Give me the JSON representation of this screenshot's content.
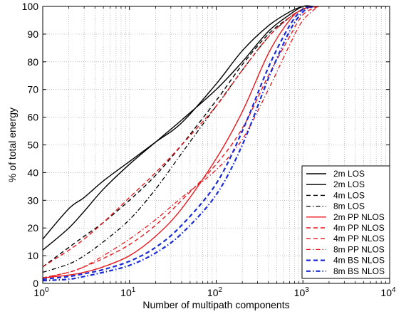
{
  "chart_data": {
    "type": "line",
    "xlabel": "Number of multipath components",
    "ylabel": "% of total energy",
    "xscale": "log",
    "xlim": [
      1,
      10000
    ],
    "ylim": [
      0,
      100
    ],
    "grid": true,
    "legend_position": "bottom-right",
    "x_ticks": [
      {
        "value": 1,
        "base": "10",
        "exp": "0"
      },
      {
        "value": 10,
        "base": "10",
        "exp": "1"
      },
      {
        "value": 100,
        "base": "10",
        "exp": "2"
      },
      {
        "value": 1000,
        "base": "10",
        "exp": "3"
      },
      {
        "value": 10000,
        "base": "10",
        "exp": "4"
      }
    ],
    "y_ticks": [
      {
        "value": 0,
        "label": "0"
      },
      {
        "value": 10,
        "label": "10"
      },
      {
        "value": 20,
        "label": "20"
      },
      {
        "value": 30,
        "label": "30"
      },
      {
        "value": 40,
        "label": "40"
      },
      {
        "value": 50,
        "label": "50"
      },
      {
        "value": 60,
        "label": "60"
      },
      {
        "value": 70,
        "label": "70"
      },
      {
        "value": 80,
        "label": "80"
      },
      {
        "value": 90,
        "label": "90"
      },
      {
        "value": 100,
        "label": "100"
      }
    ],
    "series": [
      {
        "name": "2m LOS",
        "color": "#000000",
        "dash": "solid",
        "width": 1.4,
        "x": [
          1,
          2,
          3,
          5,
          10,
          20,
          40,
          100,
          200,
          400,
          700,
          1000,
          1300
        ],
        "y": [
          16,
          27,
          31,
          37,
          44,
          51,
          58,
          72,
          84,
          93,
          98,
          100,
          100
        ]
      },
      {
        "name": "2m LOS",
        "color": "#000000",
        "dash": "solid",
        "width": 1.4,
        "x": [
          1,
          2,
          3,
          5,
          10,
          20,
          40,
          100,
          200,
          400,
          700,
          1000,
          1300
        ],
        "y": [
          12,
          20,
          26,
          34,
          43,
          51,
          59,
          70,
          80,
          91,
          97,
          100,
          100
        ]
      },
      {
        "name": "4m LOS",
        "color": "#000000",
        "dash": "dash",
        "width": 1.4,
        "x": [
          1,
          2,
          3,
          5,
          10,
          20,
          40,
          100,
          200,
          400,
          700,
          1000,
          1300
        ],
        "y": [
          6,
          13,
          17,
          22,
          30,
          39,
          50,
          66,
          79,
          90,
          96,
          99,
          100
        ]
      },
      {
        "name": "8m LOS",
        "color": "#000000",
        "dash": "dashdot",
        "width": 1.3,
        "x": [
          1,
          2,
          3,
          5,
          10,
          20,
          40,
          100,
          200,
          400,
          700,
          1000,
          1300
        ],
        "y": [
          4,
          7,
          10,
          15,
          23,
          34,
          47,
          64,
          77,
          89,
          96,
          99,
          100
        ]
      },
      {
        "name": "2m PP NLOS",
        "color": "#e8161b",
        "dash": "solid",
        "width": 1.4,
        "x": [
          1,
          2,
          3,
          5,
          10,
          20,
          40,
          100,
          200,
          400,
          700,
          1000,
          1500
        ],
        "y": [
          2,
          3,
          4,
          6,
          10,
          17,
          27,
          45,
          62,
          83,
          95,
          99,
          100
        ]
      },
      {
        "name": "4m PP NLOS",
        "color": "#e8161b",
        "dash": "dash",
        "width": 1.4,
        "x": [
          1,
          2,
          3,
          5,
          10,
          20,
          40,
          100,
          200,
          400,
          700,
          1000,
          1300
        ],
        "y": [
          6,
          12,
          16,
          22,
          31,
          40,
          50,
          64,
          77,
          89,
          96,
          99,
          100
        ]
      },
      {
        "name": "4m PP NLOS",
        "color": "#e8161b",
        "dash": "dash",
        "width": 1.4,
        "x": [
          1,
          2,
          3,
          5,
          10,
          20,
          40,
          100,
          200,
          400,
          700,
          1000,
          1500
        ],
        "y": [
          2,
          4,
          6,
          9,
          14,
          21,
          30,
          43,
          56,
          75,
          89,
          97,
          100
        ]
      },
      {
        "name": "8m PP NLOS",
        "color": "#e8161b",
        "dash": "dashdot",
        "width": 1.3,
        "x": [
          1,
          2,
          3,
          5,
          10,
          20,
          40,
          100,
          200,
          400,
          700,
          1000,
          1500
        ],
        "y": [
          2,
          4,
          6,
          10,
          16,
          23,
          31,
          41,
          52,
          70,
          86,
          95,
          100
        ]
      },
      {
        "name": "4m BS NLOS",
        "color": "#1a2bd6",
        "dash": "dash",
        "width": 2.2,
        "x": [
          1,
          2,
          3,
          5,
          10,
          20,
          40,
          100,
          200,
          400,
          700,
          1000,
          1300
        ],
        "y": [
          1.5,
          2.5,
          3.5,
          5,
          8,
          13,
          21,
          36,
          55,
          78,
          93,
          99,
          100
        ]
      },
      {
        "name": "8m BS NLOS",
        "color": "#1a2bd6",
        "dash": "dashdot",
        "width": 2.2,
        "x": [
          1,
          2,
          3,
          5,
          10,
          20,
          40,
          100,
          200,
          400,
          700,
          1000,
          1300
        ],
        "y": [
          1,
          1.5,
          2.5,
          4,
          6.5,
          11,
          18,
          32,
          50,
          74,
          91,
          98,
          100
        ]
      }
    ]
  }
}
